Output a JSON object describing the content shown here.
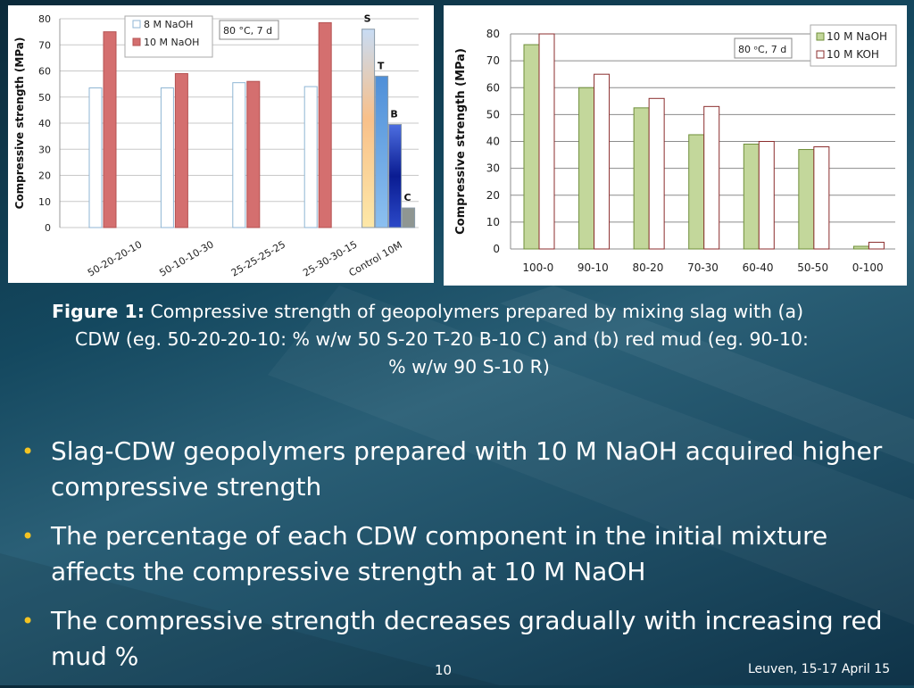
{
  "caption": {
    "lead": "Figure 1:",
    "line1": " Compressive strength of geopolymers prepared by mixing slag with (a)",
    "line2": "CDW (eg. 50-20-20-10: % w/w 50 S-20 T-20 B-10 C) and (b) red mud (eg. 90-10:",
    "line3": "% w/w 90 S-10 R)"
  },
  "bullets": [
    "Slag-CDW geopolymers prepared with 10 M NaOH acquired higher compressive strength",
    "The percentage of each CDW component in the initial mixture affects the compressive strength at 10 M NaOH",
    "The compressive strength decreases gradually with increasing red mud %"
  ],
  "footer": {
    "page": "10",
    "date": "Leuven, 15-17 April 15"
  },
  "chart_data": [
    {
      "type": "bar",
      "ylabel": "Compressive strength (MPa)",
      "ylim": [
        0,
        80
      ],
      "yticks": [
        0,
        10,
        20,
        30,
        40,
        50,
        60,
        70,
        80
      ],
      "grid": true,
      "legend_position": "top-center",
      "annotation": "80 °C, 7 d",
      "categories": [
        "50-20-20-10",
        "50-10-10-30",
        "25-25-25-25",
        "25-30-30-15"
      ],
      "series": [
        {
          "name": "8 M NaOH",
          "values": [
            53.5,
            53.5,
            55.5,
            54
          ],
          "color": "#ffffff",
          "stroke": "#8fb6d4"
        },
        {
          "name": "10 M NaOH",
          "values": [
            75,
            59,
            56,
            78.5
          ],
          "color": "#d46f6f",
          "stroke": "#b55353"
        }
      ],
      "control_group": {
        "label": "Control 10M",
        "bars": [
          {
            "label": "S",
            "value": 76,
            "color": "sunrise"
          },
          {
            "label": "T",
            "value": 58,
            "color": "#5b9bd5"
          },
          {
            "label": "B",
            "value": 39.5,
            "color": "#1a2aa8"
          },
          {
            "label": "C",
            "value": 7.5,
            "color": "#8f9692"
          }
        ]
      }
    },
    {
      "type": "bar",
      "ylabel": "Compressive strength (MPa)",
      "ylim": [
        0,
        80
      ],
      "yticks": [
        0,
        10,
        20,
        30,
        40,
        50,
        60,
        70,
        80
      ],
      "grid": true,
      "legend_position": "top-right",
      "annotation": "80 ᵒC, 7 d",
      "categories": [
        "100-0",
        "90-10",
        "80-20",
        "70-30",
        "60-40",
        "50-50",
        "0-100"
      ],
      "series": [
        {
          "name": "10 M NaOH",
          "values": [
            76,
            60,
            52.5,
            42.5,
            39,
            37,
            1
          ],
          "color": "#c3d79b",
          "stroke": "#6f8f3a"
        },
        {
          "name": "10 M KOH",
          "values": [
            80,
            65,
            56,
            53,
            40,
            38,
            2.5
          ],
          "color": "#ffffff",
          "stroke": "#8b2e2e"
        }
      ]
    }
  ]
}
